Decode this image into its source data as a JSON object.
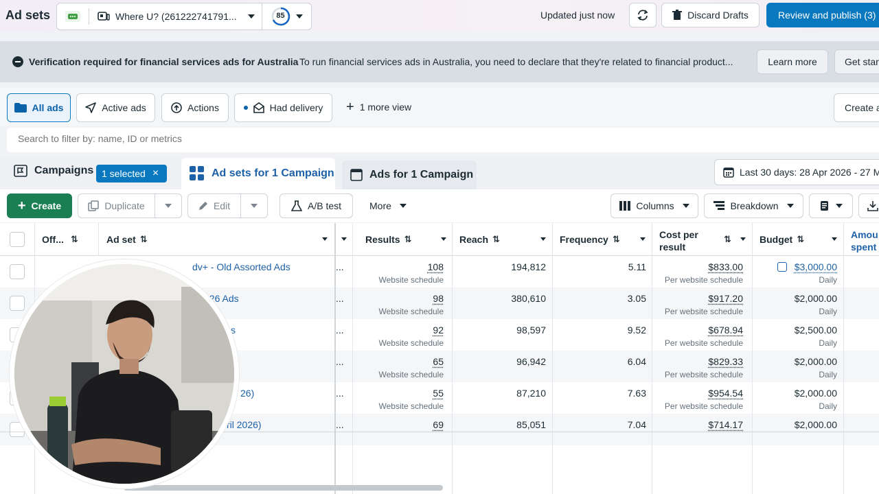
{
  "header": {
    "title": "Ad sets",
    "account_name": "Where U? (261222741791...",
    "score": "85",
    "updated": "Updated just now",
    "discard_label": "Discard Drafts",
    "review_label": "Review and publish (3)"
  },
  "banner": {
    "title": "Verification required for financial services ads for Australia",
    "text": "To run financial services ads in Australia, you need to declare that they're related to financial product...",
    "learn_more": "Learn more",
    "get_started": "Get star"
  },
  "views": {
    "all_ads": "All ads",
    "active_ads": "Active ads",
    "actions": "Actions",
    "had_delivery": "Had delivery",
    "more_view": "1 more view",
    "create_partial": "Create a"
  },
  "search": {
    "placeholder": "Search to filter by: name, ID or metrics"
  },
  "tabs": {
    "campaigns": "Campaigns",
    "selected_badge": "1 selected",
    "adsets": "Ad sets for 1 Campaign",
    "ads": "Ads for 1 Campaign",
    "date_range": "Last 30 days: 28 Apr 2026 - 27 M"
  },
  "toolbar": {
    "create": "Create",
    "duplicate": "Duplicate",
    "edit": "Edit",
    "ab_test": "A/B test",
    "more": "More",
    "columns": "Columns",
    "breakdown": "Breakdown"
  },
  "table": {
    "headers": {
      "offon": "Off...",
      "adset": "Ad set",
      "results": "Results",
      "reach": "Reach",
      "frequency": "Frequency",
      "cpr_line1": "Cost per",
      "cpr_line2": "result",
      "budget": "Budget",
      "amount_line1": "Amou",
      "amount_line2": "spent"
    },
    "rows": [
      {
        "name": "dv+ - Old Assorted Ads",
        "results": "108",
        "results_sub": "Website schedule",
        "reach": "194,812",
        "frequency": "5.11",
        "cpr": "$833.00",
        "cpr_sub": "Per website schedule",
        "budget": "$3,000.00",
        "budget_sub": "Daily"
      },
      {
        "name": "026 Ads",
        "results": "98",
        "results_sub": "Website schedule",
        "reach": "380,610",
        "frequency": "3.05",
        "cpr": "$917.20",
        "cpr_sub": "Per website schedule",
        "budget": "$2,000.00",
        "budget_sub": "Daily"
      },
      {
        "name": "s",
        "results": "92",
        "results_sub": "Website schedule",
        "reach": "98,597",
        "frequency": "9.52",
        "cpr": "$678.94",
        "cpr_sub": "Per website schedule",
        "budget": "$2,500.00",
        "budget_sub": "Daily"
      },
      {
        "name": "",
        "results": "65",
        "results_sub": "Website schedule",
        "reach": "96,942",
        "frequency": "6.04",
        "cpr": "$829.33",
        "cpr_sub": "Per website schedule",
        "budget": "$2,000.00",
        "budget_sub": "Daily"
      },
      {
        "name": "26)",
        "results": "55",
        "results_sub": "Website schedule",
        "reach": "87,210",
        "frequency": "7.63",
        "cpr": "$954.54",
        "cpr_sub": "Per website schedule",
        "budget": "$2,000.00",
        "budget_sub": "Daily"
      },
      {
        "name": "ril 2026)",
        "results": "69",
        "results_sub": "",
        "reach": "85,051",
        "frequency": "7.04",
        "cpr": "$714.17",
        "cpr_sub": "",
        "budget": "$2,000.00",
        "budget_sub": ""
      }
    ],
    "ellipsis": "..."
  },
  "colors": {
    "primary": "#0a78be",
    "create_green": "#1a7f52",
    "link": "#1d61a8"
  }
}
